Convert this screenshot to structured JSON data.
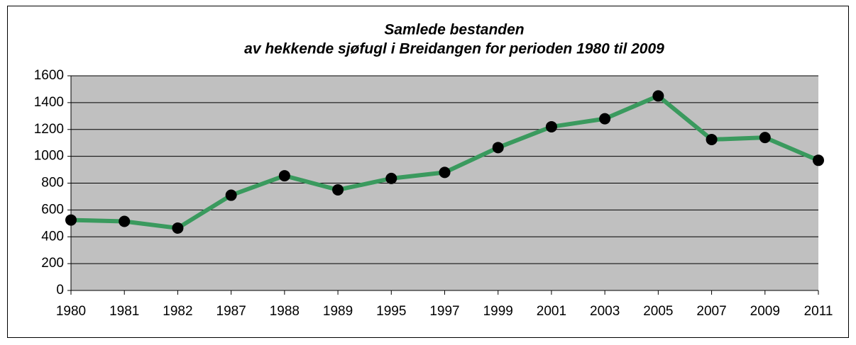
{
  "chart_data": {
    "type": "line",
    "title": [
      "Samlede bestanden",
      "av hekkende sjøfugl i Breidangen for perioden 1980 til 2009"
    ],
    "categories": [
      "1980",
      "1981",
      "1982",
      "1987",
      "1988",
      "1989",
      "1995",
      "1997",
      "1999",
      "2001",
      "2003",
      "2005",
      "2007",
      "2009",
      "2011"
    ],
    "series": [
      {
        "color": "#3a9a5e",
        "marker_color": "#000000",
        "values": [
          525,
          515,
          465,
          710,
          855,
          750,
          835,
          880,
          1065,
          1220,
          1280,
          1450,
          1125,
          1140,
          970
        ]
      }
    ],
    "ylim": [
      0,
      1600
    ],
    "yticks": [
      0,
      200,
      400,
      600,
      800,
      1000,
      1200,
      1400,
      1600
    ],
    "grid": true,
    "plot_background": "#c0c0c0"
  }
}
